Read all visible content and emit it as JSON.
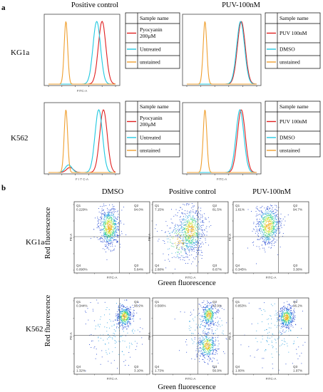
{
  "colors": {
    "red": "#e02020",
    "cyan": "#20c8e0",
    "orange": "#f0a030",
    "frame": "#000000",
    "dots": "#1a3fcf"
  },
  "panel_a": {
    "letter": "a",
    "col_titles": [
      "Positive control",
      "PUV-100nM"
    ],
    "row_labels": [
      "KG1a",
      "K562"
    ],
    "histograms": [
      {
        "row": 0,
        "col": 0,
        "axis_label": "FITC-A",
        "legend": [
          "Sample name",
          "Pyocyanin 200µM",
          "Untreated",
          "unstained"
        ]
      },
      {
        "row": 0,
        "col": 1,
        "axis_label": "",
        "legend": [
          "Sample name",
          "PUV 100nM",
          "DMSO",
          "unstained"
        ]
      },
      {
        "row": 1,
        "col": 0,
        "axis_label": "F I T C-A",
        "legend": [
          "Sample name",
          "Pyocyanin 200µM",
          "Untreated",
          "unstained"
        ]
      },
      {
        "row": 1,
        "col": 1,
        "axis_label": "FITC-A",
        "legend": [
          "Sample name",
          "PUV 100nM",
          "DMSO",
          "unstained"
        ]
      }
    ]
  },
  "panel_b": {
    "letter": "b",
    "col_titles": [
      "DMSO",
      "Positive control",
      "PUV-100nM"
    ],
    "row_labels": [
      "KG1a",
      "K562"
    ],
    "ylabel": "Red fluorescence",
    "xlabel": "Green fluorescence",
    "axis_x": "FITC-A",
    "axis_y": "PE-A",
    "scatters": [
      {
        "row": 0,
        "col": 0,
        "q": {
          "Q1": "0.229%",
          "Q2": "94.0%",
          "Q3": "5.64%",
          "Q4": "0.090%"
        }
      },
      {
        "row": 0,
        "col": 1,
        "q": {
          "Q1": "7.15%",
          "Q2": "81.5%",
          "Q3": "8.67%",
          "Q4": "2.68%"
        }
      },
      {
        "row": 0,
        "col": 2,
        "q": {
          "Q1": "1.61%",
          "Q2": "94.7%",
          "Q3": "3.38%",
          "Q4": "0.345%"
        }
      },
      {
        "row": 1,
        "col": 0,
        "q": {
          "Q1": "0.344%",
          "Q2": "95.2%",
          "Q3": "3.10%",
          "Q4": "1.32%"
        }
      },
      {
        "row": 1,
        "col": 1,
        "q": {
          "Q1": "0.566%",
          "Q2": "40.9%",
          "Q3": "56.9%",
          "Q4": "1.73%"
        }
      },
      {
        "row": 1,
        "col": 2,
        "q": {
          "Q1": "0.853%",
          "Q2": "96.2%",
          "Q3": "1.97%",
          "Q4": "1.00%"
        }
      }
    ]
  },
  "chart_data": [
    {
      "type": "area",
      "title": "Positive control",
      "row_label": "KG1a",
      "xlabel": "FITC-A",
      "legend_title": "Sample name",
      "series": [
        {
          "name": "Pyocyanin 200µM",
          "peak_log10": 4.0
        },
        {
          "name": "Untreated",
          "peak_log10": 3.6
        },
        {
          "name": "unstained",
          "peak_log10": 1.3
        }
      ]
    },
    {
      "type": "area",
      "title": "PUV-100nM",
      "row_label": "KG1a",
      "legend_title": "Sample name",
      "series": [
        {
          "name": "PUV 100nM",
          "peak_log10": 3.9
        },
        {
          "name": "DMSO",
          "peak_log10": 3.85
        },
        {
          "name": "unstained",
          "peak_log10": 1.3
        }
      ]
    },
    {
      "type": "area",
      "title": "Positive control",
      "row_label": "K562",
      "xlabel": "F I T C-A",
      "legend_title": "Sample name",
      "series": [
        {
          "name": "Pyocyanin 200µM",
          "peak_log10": 4.1
        },
        {
          "name": "Untreated",
          "peak_log10": 3.75
        },
        {
          "name": "unstained",
          "peak_log10": 1.3
        }
      ]
    },
    {
      "type": "area",
      "title": "PUV-100nM",
      "row_label": "K562",
      "xlabel": "FITC-A",
      "legend_title": "Sample name",
      "series": [
        {
          "name": "PUV 100nM",
          "peak_log10": 3.9
        },
        {
          "name": "DMSO",
          "peak_log10": 3.8
        },
        {
          "name": "unstained",
          "peak_log10": 1.3
        }
      ]
    },
    {
      "type": "scatter",
      "title": "DMSO",
      "row_label": "KG1a",
      "xlabel": "FITC-A",
      "ylabel": "PE-A",
      "quadrants": {
        "Q1": "0.229%",
        "Q2": "94.0%",
        "Q3": "5.64%",
        "Q4": "0.090%"
      }
    },
    {
      "type": "scatter",
      "title": "Positive control",
      "row_label": "KG1a",
      "xlabel": "FITC-A",
      "ylabel": "PE-A",
      "quadrants": {
        "Q1": "7.15%",
        "Q2": "81.5%",
        "Q3": "8.67%",
        "Q4": "2.68%"
      }
    },
    {
      "type": "scatter",
      "title": "PUV-100nM",
      "row_label": "KG1a",
      "xlabel": "FITC-A",
      "ylabel": "PE-A",
      "quadrants": {
        "Q1": "1.61%",
        "Q2": "94.7%",
        "Q3": "3.38%",
        "Q4": "0.345%"
      }
    },
    {
      "type": "scatter",
      "title": "DMSO",
      "row_label": "K562",
      "xlabel": "FITC-A",
      "ylabel": "PE-A",
      "quadrants": {
        "Q1": "0.344%",
        "Q2": "95.2%",
        "Q3": "3.10%",
        "Q4": "1.32%"
      }
    },
    {
      "type": "scatter",
      "title": "Positive control",
      "row_label": "K562",
      "xlabel": "FITC-A",
      "ylabel": "PE-A",
      "quadrants": {
        "Q1": "0.566%",
        "Q2": "40.9%",
        "Q3": "56.9%",
        "Q4": "1.73%"
      }
    },
    {
      "type": "scatter",
      "title": "PUV-100nM",
      "row_label": "K562",
      "xlabel": "FITC-A",
      "ylabel": "PE-A",
      "quadrants": {
        "Q1": "0.853%",
        "Q2": "96.2%",
        "Q3": "1.97%",
        "Q4": "1.00%"
      }
    }
  ]
}
